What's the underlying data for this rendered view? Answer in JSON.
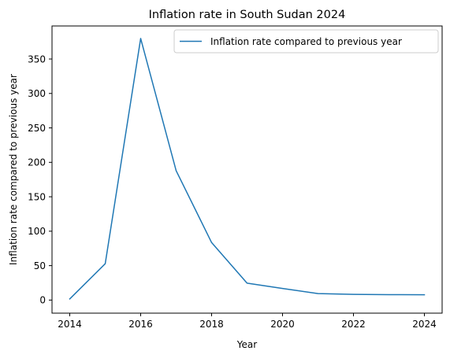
{
  "chart_data": {
    "type": "line",
    "title": "Inflation rate in South Sudan 2024",
    "xlabel": "Year",
    "ylabel": "Inflation rate compared to previous year",
    "xlim": [
      2013.5,
      2024.5
    ],
    "ylim": [
      -19,
      398
    ],
    "xticks": [
      2014,
      2016,
      2018,
      2020,
      2022,
      2024
    ],
    "yticks": [
      0,
      50,
      100,
      150,
      200,
      250,
      300,
      350
    ],
    "grid": false,
    "legend_position": "top-right",
    "series": [
      {
        "name": "Inflation rate compared to previous year",
        "color": "#1f77b4",
        "x": [
          2014,
          2015,
          2016,
          2017,
          2018,
          2019,
          2020,
          2021,
          2022,
          2023,
          2024
        ],
        "y": [
          1.7,
          52.8,
          379.8,
          187.9,
          83.5,
          24.5,
          16.9,
          9.5,
          8.3,
          7.9,
          7.7
        ]
      }
    ]
  }
}
